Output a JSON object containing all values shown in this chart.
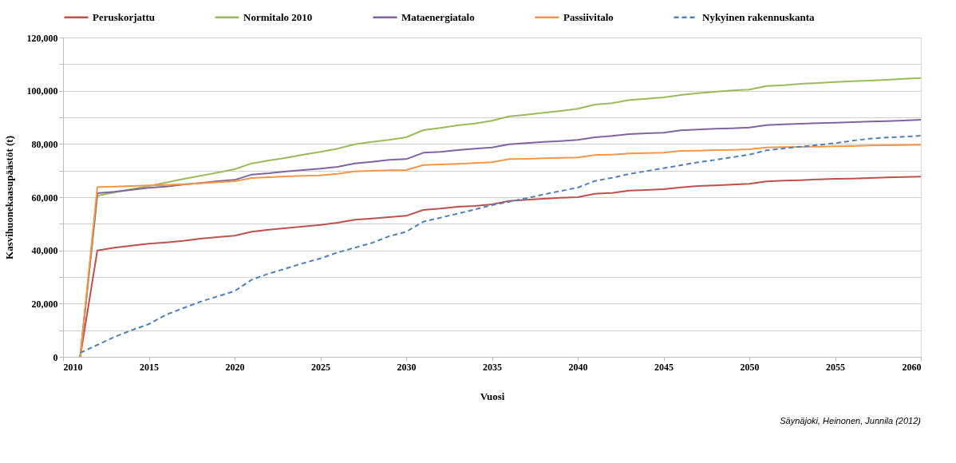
{
  "chart_data": {
    "type": "line",
    "xlabel": "Vuosi",
    "ylabel": "Kasvihuonekaasupäästöt (t)",
    "annotations": [
      "Säynäjoki, Heinonen, Junnila (2012)"
    ],
    "x": [
      2011,
      2012,
      2013,
      2014,
      2015,
      2016,
      2017,
      2018,
      2019,
      2020,
      2021,
      2022,
      2023,
      2024,
      2025,
      2026,
      2027,
      2028,
      2029,
      2030,
      2031,
      2032,
      2033,
      2034,
      2035,
      2036,
      2037,
      2038,
      2039,
      2040,
      2041,
      2042,
      2043,
      2044,
      2045,
      2046,
      2047,
      2048,
      2049,
      2050,
      2051,
      2052,
      2053,
      2054,
      2055,
      2056,
      2057,
      2058,
      2059,
      2060
    ],
    "xlim": [
      2010,
      2060
    ],
    "xticks": [
      2010,
      2015,
      2020,
      2025,
      2030,
      2035,
      2040,
      2045,
      2050,
      2055,
      2060
    ],
    "ylim": [
      0,
      120000
    ],
    "yticks": [
      {
        "value": 0,
        "label": "0"
      },
      {
        "value": 10000,
        "label": null
      },
      {
        "value": 20000,
        "label": "20,000"
      },
      {
        "value": 30000,
        "label": null
      },
      {
        "value": 40000,
        "label": "40,000"
      },
      {
        "value": 50000,
        "label": null
      },
      {
        "value": 60000,
        "label": "60,000"
      },
      {
        "value": 70000,
        "label": null
      },
      {
        "value": 80000,
        "label": "80,000"
      },
      {
        "value": 90000,
        "label": null
      },
      {
        "value": 100000,
        "label": "100,000"
      },
      {
        "value": 110000,
        "label": null
      },
      {
        "value": 120000,
        "label": "120,000"
      }
    ],
    "grid": "y",
    "legend": "top",
    "marker": "none",
    "series": [
      {
        "name": "Peruskorjattu",
        "color": "#c0504d",
        "line_style": "solid",
        "values": [
          0,
          40000,
          41000,
          41800,
          42500,
          43000,
          43600,
          44400,
          45000,
          45500,
          47000,
          47800,
          48400,
          49000,
          49600,
          50400,
          51500,
          52000,
          52500,
          53000,
          55200,
          55700,
          56400,
          56700,
          57300,
          58600,
          59000,
          59400,
          59800,
          60000,
          61300,
          61600,
          62500,
          62700,
          63000,
          63700,
          64200,
          64400,
          64700,
          65000,
          65900,
          66200,
          66400,
          66700,
          66900,
          67000,
          67200,
          67400,
          67600,
          67700
        ]
      },
      {
        "name": "Normitalo 2010",
        "color": "#9bbb59",
        "line_style": "solid",
        "values": [
          0,
          60500,
          61800,
          63000,
          64200,
          65500,
          66800,
          68000,
          69200,
          70500,
          72700,
          73800,
          74800,
          76000,
          77000,
          78200,
          79900,
          80800,
          81500,
          82500,
          85200,
          86000,
          87000,
          87700,
          88700,
          90400,
          91000,
          91700,
          92400,
          93200,
          94800,
          95300,
          96500,
          97000,
          97500,
          98400,
          99100,
          99600,
          100100,
          100400,
          101800,
          102100,
          102600,
          102900,
          103300,
          103600,
          103800,
          104100,
          104500,
          104800
        ]
      },
      {
        "name": "Mataenergiatalo",
        "color": "#8064a2",
        "line_style": "solid",
        "values": [
          0,
          61500,
          62000,
          62800,
          63500,
          64000,
          64700,
          65300,
          66000,
          66500,
          68500,
          69000,
          69700,
          70200,
          70700,
          71400,
          72700,
          73300,
          74000,
          74300,
          76700,
          77000,
          77700,
          78200,
          78700,
          79900,
          80300,
          80800,
          81100,
          81500,
          82500,
          83000,
          83700,
          84000,
          84200,
          85100,
          85400,
          85700,
          85900,
          86200,
          87100,
          87400,
          87600,
          87800,
          88000,
          88200,
          88400,
          88600,
          88800,
          89100
        ]
      },
      {
        "name": "Passiivitalo",
        "color": "#f79646",
        "line_style": "solid",
        "values": [
          0,
          63800,
          64000,
          64200,
          64400,
          64600,
          64900,
          65200,
          65600,
          66000,
          67200,
          67500,
          67800,
          68000,
          68200,
          68800,
          69700,
          69900,
          70100,
          70200,
          72100,
          72300,
          72500,
          72800,
          73100,
          74300,
          74400,
          74600,
          74800,
          74900,
          75800,
          76000,
          76400,
          76600,
          76700,
          77400,
          77500,
          77700,
          77800,
          78000,
          78700,
          78800,
          78900,
          79000,
          79100,
          79200,
          79400,
          79500,
          79600,
          79700
        ]
      },
      {
        "name": "Nykyinen rakennuskanta",
        "color": "#4f81bd",
        "line_style": "dashed",
        "values": [
          1500,
          4500,
          7500,
          10000,
          12300,
          15800,
          18300,
          20700,
          22700,
          24700,
          29000,
          31300,
          33200,
          35200,
          37000,
          39200,
          41000,
          42800,
          45300,
          47000,
          50800,
          52300,
          53800,
          55400,
          57000,
          58300,
          59600,
          61000,
          62300,
          63600,
          66100,
          67300,
          68700,
          69800,
          70900,
          72000,
          73100,
          74000,
          75000,
          76000,
          77600,
          78300,
          79000,
          79600,
          80300,
          81200,
          82000,
          82400,
          82700,
          83100
        ]
      }
    ]
  }
}
